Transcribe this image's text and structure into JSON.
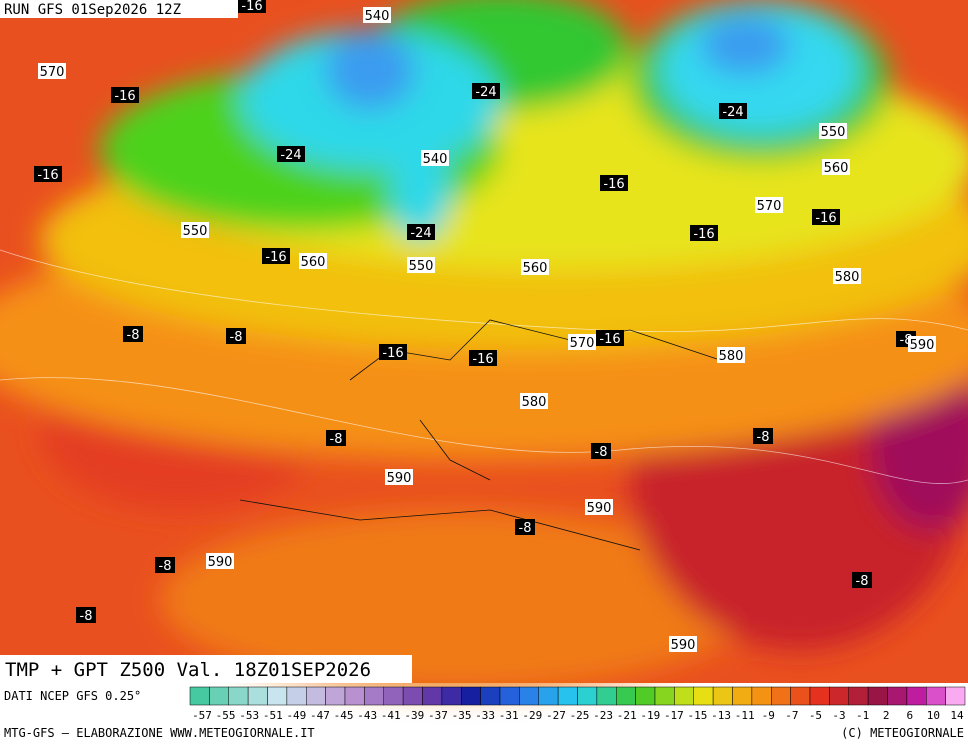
{
  "header": {
    "run": "RUN GFS 01Sep2026 12Z"
  },
  "contour_labels": [
    "570",
    "-16",
    "-16",
    "540",
    "-24",
    "-24",
    "550",
    "-24",
    "540",
    "-16",
    "560",
    "-16",
    "570",
    "-16",
    "550",
    "-24",
    "-16",
    "-16",
    "560",
    "550",
    "560",
    "580",
    "-8",
    "-8",
    "-16",
    "-16",
    "570",
    "-16",
    "580",
    "-8",
    "590",
    "580",
    "-8",
    "-8",
    "-8",
    "590",
    "590",
    "-8",
    "-8",
    "590",
    "-8",
    "-8",
    "590"
  ],
  "footer": {
    "title": "TMP + GPT Z500 Val. 18Z01SEP2026",
    "source": "DATI NCEP GFS 0.25°",
    "credit": "MTG-GFS – ELABORAZIONE WWW.METEOGIORNALE.IT",
    "copyright": "(C) METEOGIORNALE"
  },
  "legend": {
    "labels": [
      "-57",
      "-55",
      "-53",
      "-51",
      "-49",
      "-47",
      "-45",
      "-43",
      "-41",
      "-39",
      "-37",
      "-35",
      "-33",
      "-31",
      "-29",
      "-27",
      "-25",
      "-23",
      "-21",
      "-19",
      "-17",
      "-15",
      "-13",
      "-11",
      "-9",
      "-7",
      "-5",
      "-3",
      "-1",
      "2",
      "6",
      "10",
      "14"
    ]
  }
}
